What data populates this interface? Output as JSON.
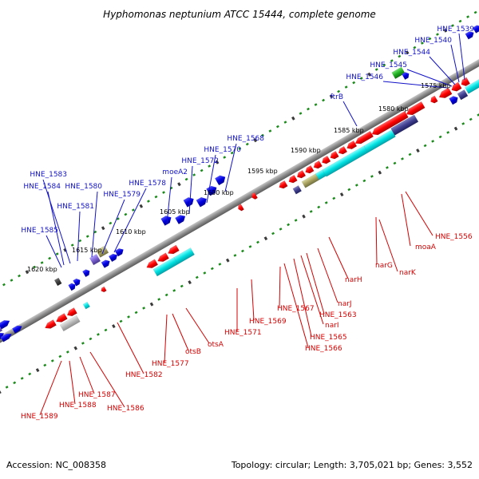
{
  "title": "Hyphomonas neptunium ATCC 15444, complete genome",
  "footer": {
    "accession": "Accession: NC_008358",
    "summary": "Topology: circular; Length: 3,705,021 bp; Genes: 3,552"
  },
  "colors": {
    "forward_label": "#1212c8",
    "reverse_label": "#d40000",
    "forward_gene": "#0000e6",
    "reverse_gene": "#ff1a1a",
    "backbone": "#8c8c8c",
    "tick_green": "#1a8a1a",
    "tick_dark": "#3a3a3a"
  },
  "kbp_labels": [
    {
      "text": "1575 kbp"
    },
    {
      "text": "1580 kbp"
    },
    {
      "text": "1585 kbp"
    },
    {
      "text": "1590 kbp"
    },
    {
      "text": "1595 kbp"
    },
    {
      "text": "1600 kbp"
    },
    {
      "text": "1605 kbp"
    },
    {
      "text": "1610 kbp"
    },
    {
      "text": "1615 kbp"
    },
    {
      "text": "1620 kbp"
    }
  ],
  "forward_labels": [
    {
      "text": "HNE_1539"
    },
    {
      "text": "HNE_1540"
    },
    {
      "text": "HNE_1544"
    },
    {
      "text": "HNE_1545"
    },
    {
      "text": "HNE_1546"
    },
    {
      "text": "ftrB"
    },
    {
      "text": "HNE_1568"
    },
    {
      "text": "HNE_1570"
    },
    {
      "text": "HNE_1572"
    },
    {
      "text": "moeA2"
    },
    {
      "text": "HNE_1578"
    },
    {
      "text": "HNE_1579"
    },
    {
      "text": "HNE_1580"
    },
    {
      "text": "HNE_1581"
    },
    {
      "text": "HNE_1583"
    },
    {
      "text": "HNE_1584"
    },
    {
      "text": "HNE_1585"
    }
  ],
  "reverse_labels": [
    {
      "text": "HNE_1556"
    },
    {
      "text": "moaA"
    },
    {
      "text": "narG"
    },
    {
      "text": "narK"
    },
    {
      "text": "narH"
    },
    {
      "text": "narJ"
    },
    {
      "text": "HNE_1563"
    },
    {
      "text": "narI"
    },
    {
      "text": "HNE_1565"
    },
    {
      "text": "HNE_1566"
    },
    {
      "text": "HNE_1567"
    },
    {
      "text": "HNE_1569"
    },
    {
      "text": "HNE_1571"
    },
    {
      "text": "otsA"
    },
    {
      "text": "otsB"
    },
    {
      "text": "HNE_1577"
    },
    {
      "text": "HNE_1582"
    },
    {
      "text": "HNE_1586"
    },
    {
      "text": "HNE_1587"
    },
    {
      "text": "HNE_1588"
    },
    {
      "text": "HNE_1589"
    }
  ]
}
